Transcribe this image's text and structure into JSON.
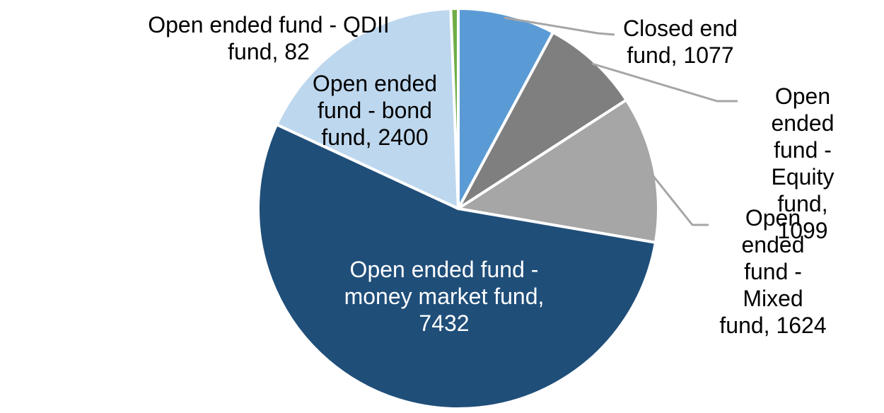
{
  "chart_data": {
    "type": "pie",
    "title": "",
    "direction": "clockwise",
    "start_angle_deg": 0,
    "legend_position": "none",
    "slice_border_color": "#FFFFFF",
    "leader_line_color": "#A6A6A6",
    "text_color": "#000000",
    "inside_label_text_color": "#FFFFFF",
    "slices": [
      {
        "name": "Closed end fund",
        "value": 1077,
        "color": "#5B9BD5",
        "label_lines": [
          "Closed end",
          "fund, 1077"
        ],
        "label_placement": "outside-top-right",
        "leader_line": true
      },
      {
        "name": "Open ended fund - Equity fund",
        "value": 1099,
        "color": "#7F7F7F",
        "label_lines": [
          "Open ended",
          "fund - Equity",
          "fund, 1099"
        ],
        "label_placement": "outside-right",
        "leader_line": true
      },
      {
        "name": "Open ended fund - Mixed fund",
        "value": 1624,
        "color": "#A6A6A6",
        "label_lines": [
          "Open ended",
          "fund - Mixed",
          "fund, 1624"
        ],
        "label_placement": "outside-right",
        "leader_line": true
      },
      {
        "name": "Open ended fund - money market fund",
        "value": 7432,
        "color": "#1F4E79",
        "label_lines": [
          "Open ended fund -",
          "money market fund,",
          "7432"
        ],
        "label_placement": "inside",
        "leader_line": false
      },
      {
        "name": "Open ended fund - bond fund",
        "value": 2400,
        "color": "#BDD7EE",
        "label_lines": [
          "Open ended",
          "fund - bond",
          "fund, 2400"
        ],
        "label_placement": "inside-top-left",
        "leader_line": false
      },
      {
        "name": "Open ended fund - QDII fund",
        "value": 82,
        "color": "#70AD47",
        "label_lines": [
          "Open ended fund - QDII",
          "fund, 82"
        ],
        "label_placement": "outside-top-left",
        "leader_line": false
      }
    ]
  }
}
